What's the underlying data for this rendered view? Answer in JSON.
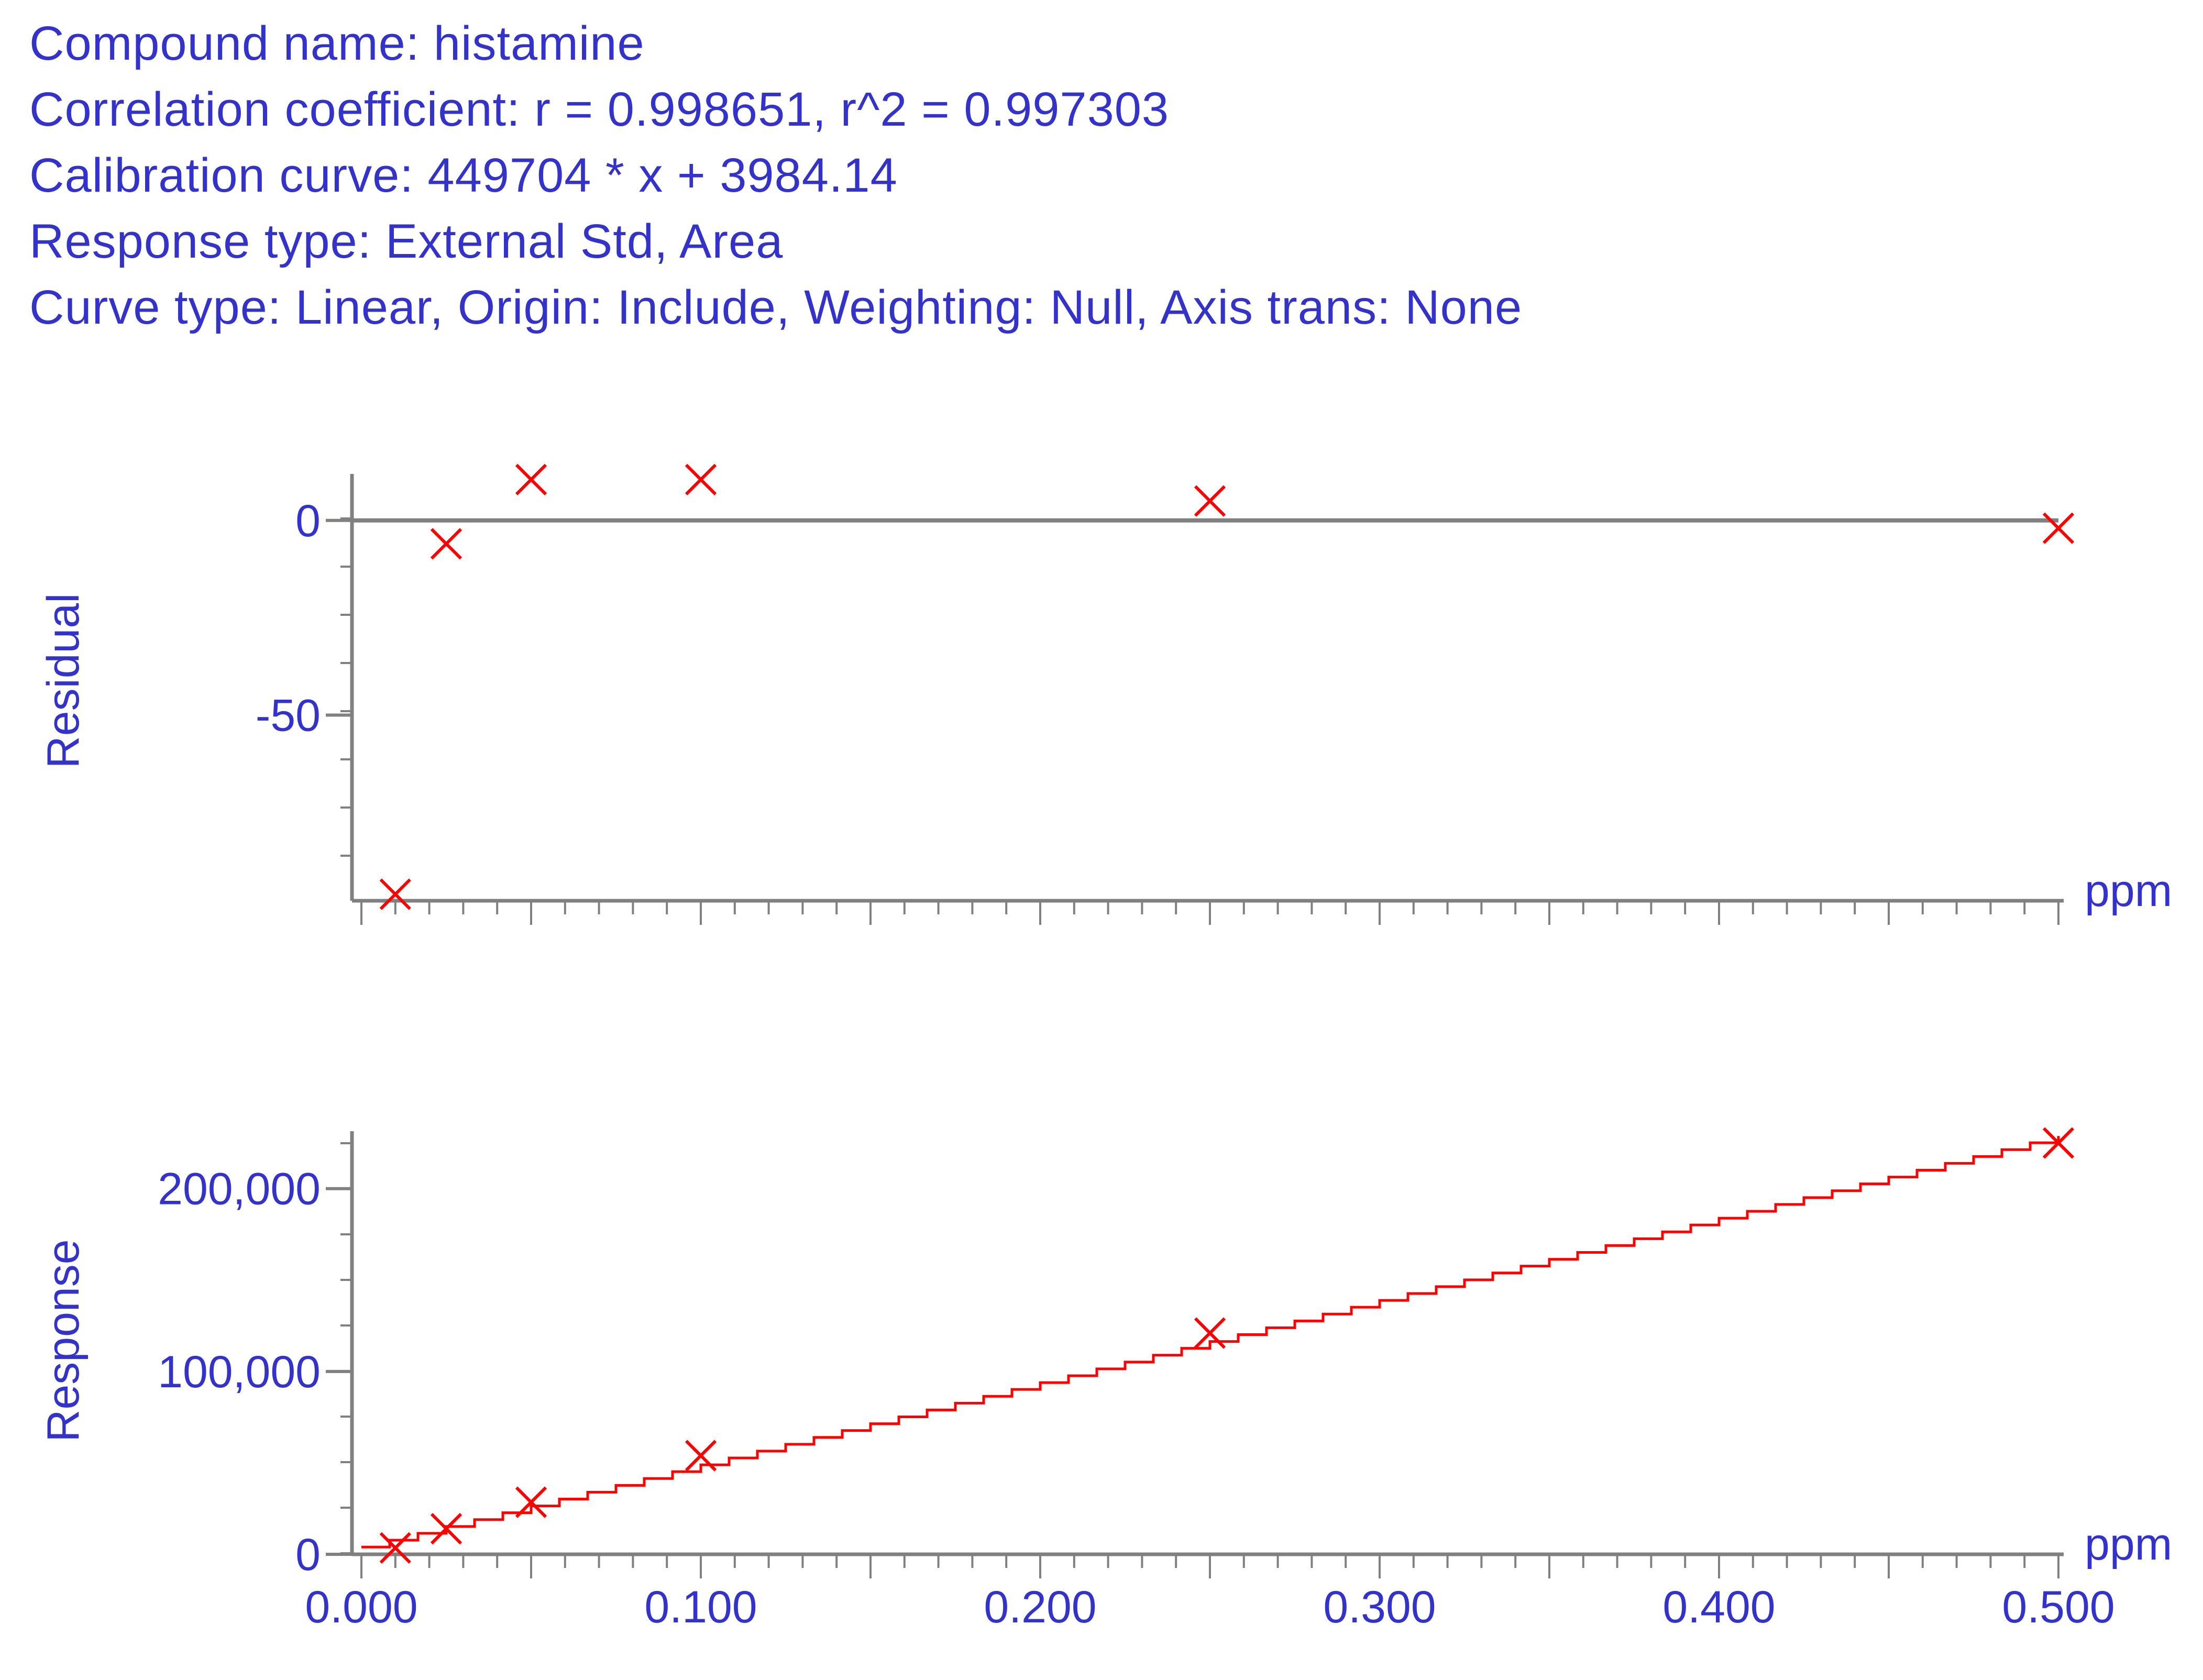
{
  "header": {
    "compound": "Compound name: histamine",
    "correlation": "Correlation coefficient: r = 0.998651, r^2 = 0.997303",
    "calibration": "Calibration curve: 449704 * x + 3984.14",
    "response_type": "Response type: External Std, Area",
    "curve_type": "Curve type: Linear, Origin: Include, Weighting: Null, Axis trans: None"
  },
  "colors": {
    "text": "#3333cc",
    "axis": "#808080",
    "marker": "#ff0000",
    "fit_line": "#ff0000"
  },
  "chart_data": [
    {
      "type": "scatter",
      "name": "residual-plot",
      "ylabel": "Residual",
      "xunit": "ppm",
      "xlim": [
        0,
        0.5
      ],
      "ylim": [
        -97,
        11
      ],
      "yticks": [
        0,
        -50
      ],
      "ytick_labels": [
        "0",
        "-50"
      ],
      "zero_line": true,
      "points": [
        {
          "x": 0.01,
          "y": -96
        },
        {
          "x": 0.025,
          "y": -6
        },
        {
          "x": 0.05,
          "y": 10.5
        },
        {
          "x": 0.1,
          "y": 10.5
        },
        {
          "x": 0.25,
          "y": 5
        },
        {
          "x": 0.5,
          "y": -2
        }
      ]
    },
    {
      "type": "scatter",
      "name": "calibration-plot",
      "ylabel": "Response",
      "xunit": "ppm",
      "xlim": [
        0,
        0.5
      ],
      "ylim": [
        0,
        230000
      ],
      "yticks": [
        0,
        100000,
        200000
      ],
      "ytick_labels": [
        "0",
        "100,000",
        "200,000"
      ],
      "xticks": [
        0,
        0.1,
        0.2,
        0.3,
        0.4,
        0.5
      ],
      "xtick_labels": [
        "0.000",
        "0.100",
        "0.200",
        "0.300",
        "0.400",
        "0.500"
      ],
      "fit": {
        "slope": 449704,
        "intercept": 3984.14
      },
      "points": [
        {
          "x": 0.01,
          "y": 3500
        },
        {
          "x": 0.025,
          "y": 14000
        },
        {
          "x": 0.05,
          "y": 28500
        },
        {
          "x": 0.1,
          "y": 54000
        },
        {
          "x": 0.25,
          "y": 121000
        },
        {
          "x": 0.5,
          "y": 225000
        }
      ]
    }
  ]
}
